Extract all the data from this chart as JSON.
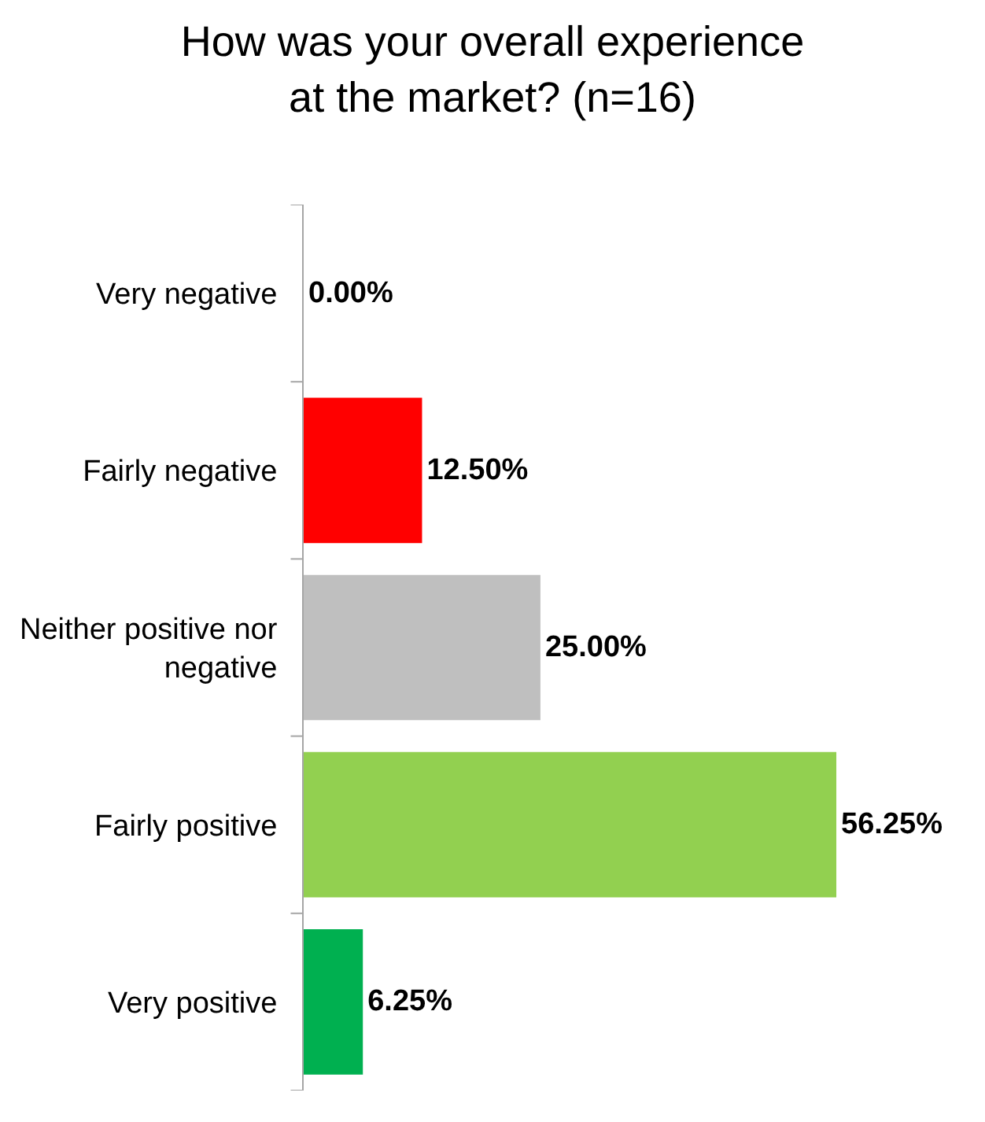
{
  "chart_data": {
    "type": "bar",
    "orientation": "horizontal",
    "title": "How was your overall experience\nat the market? (n=16)",
    "categories": [
      "Very negative",
      "Fairly negative",
      "Neither positive nor negative",
      "Fairly positive",
      "Very positive"
    ],
    "values": [
      0,
      12.5,
      25,
      56.25,
      6.25
    ],
    "colors": [
      "#ff0000",
      "#ff0000",
      "#bfbfbf",
      "#92d050",
      "#00b050"
    ],
    "value_labels": [
      "0.00%",
      "12.50%",
      "25.00%",
      "56.25%",
      "6.25%"
    ]
  }
}
